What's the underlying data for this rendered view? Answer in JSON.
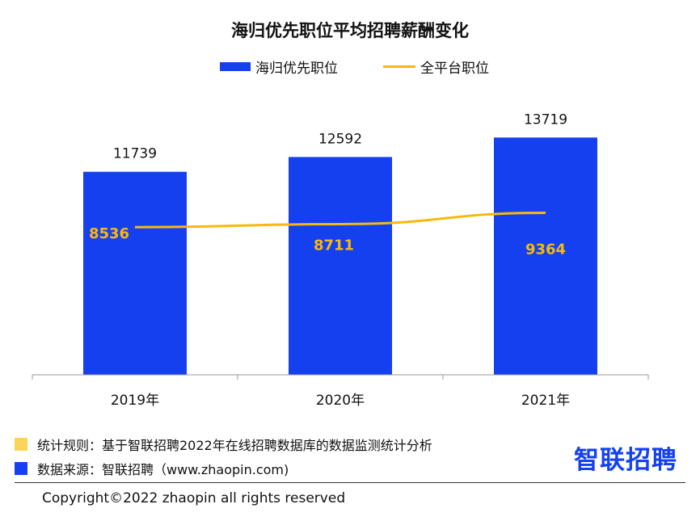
{
  "chart_data": {
    "type": "bar",
    "title": "海归优先职位平均招聘薪酬变化",
    "categories": [
      "2019年",
      "2020年",
      "2021年"
    ],
    "series": [
      {
        "name": "海归优先职位",
        "type": "bar",
        "color": "#1440f0",
        "values": [
          11739,
          12592,
          13719
        ]
      },
      {
        "name": "全平台职位",
        "type": "line",
        "color": "#f7b90b",
        "values": [
          8536,
          8711,
          9364
        ]
      }
    ],
    "xlabel": "",
    "ylabel": "",
    "ylim": [
      0,
      17000
    ],
    "grid": false,
    "legend": "top-center"
  },
  "notes": {
    "rule_color": "#fcd45a",
    "rule_text": "统计规则：基于智联招聘2022年在线招聘数据库的数据监测统计分析",
    "source_color": "#1440f0",
    "source_text": "数据来源：智联招聘（www.zhaopin.com)"
  },
  "logo_text": "智联招聘",
  "copyright": "Copyright©2022 zhaopin all rights reserved"
}
